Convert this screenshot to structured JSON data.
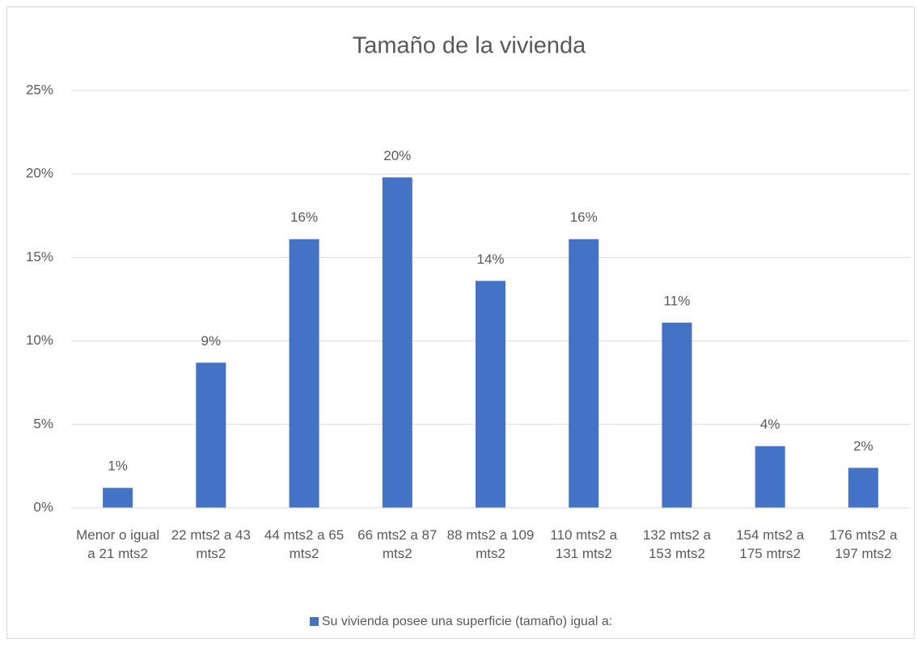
{
  "chart_data": {
    "type": "bar",
    "title": "Tamaño de la vivienda",
    "categories": [
      "Menor o igual a 21 mts2",
      "22 mts2 a 43 mts2",
      "44 mts2 a 65 mts2",
      "66 mts2 a 87 mts2",
      "88 mts2 a 109 mts2",
      "110 mts2 a 131 mts2",
      "132 mts2 a 153 mts2",
      "154 mts2 a 175 mtrs2",
      "176 mts2 a 197 mts2"
    ],
    "series": [
      {
        "name": "Su vivienda posee una superficie (tamaño) igual a:",
        "color": "#4472c4",
        "values": [
          1.2,
          8.7,
          16.1,
          19.8,
          13.6,
          16.1,
          11.1,
          3.7,
          2.4
        ],
        "value_labels": [
          "1%",
          "9%",
          "16%",
          "20%",
          "14%",
          "16%",
          "11%",
          "4%",
          "2%"
        ]
      }
    ],
    "ylim": [
      0,
      25
    ],
    "yticks": [
      {
        "value": 0,
        "label": "0%"
      },
      {
        "value": 5,
        "label": "5%"
      },
      {
        "value": 10,
        "label": "10%"
      },
      {
        "value": 15,
        "label": "15%"
      },
      {
        "value": 20,
        "label": "20%"
      },
      {
        "value": 25,
        "label": "25%"
      }
    ],
    "grid": true,
    "legend": "bottom"
  }
}
